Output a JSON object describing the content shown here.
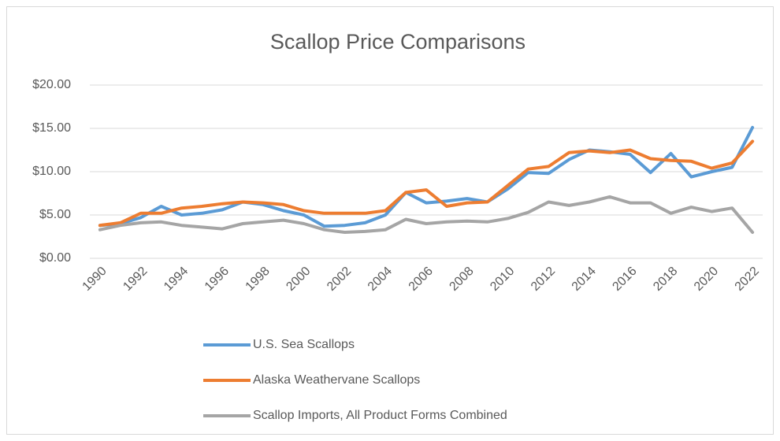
{
  "chart_data": {
    "type": "line",
    "title": "Scallop Price Comparisons",
    "categories": [
      "1990",
      null,
      "1992",
      null,
      "1994",
      null,
      "1996",
      null,
      "1998",
      null,
      "2000",
      null,
      "2002",
      null,
      "2004",
      null,
      "2006",
      null,
      "2008",
      null,
      "2010",
      null,
      "2012",
      null,
      "2014",
      null,
      "2016",
      null,
      "2018",
      null,
      "2020",
      null,
      "2022"
    ],
    "series": [
      {
        "name": "U.S. Sea Scallops",
        "color": "#5b9bd5",
        "values": [
          3.8,
          4.0,
          4.7,
          6.0,
          5.0,
          5.2,
          5.6,
          6.5,
          6.2,
          5.5,
          5.0,
          3.7,
          3.8,
          4.1,
          5.0,
          7.6,
          6.4,
          6.6,
          6.9,
          6.5,
          8.0,
          9.9,
          9.8,
          11.4,
          12.5,
          12.3,
          12.0,
          9.9,
          12.1,
          9.4,
          10.0,
          10.5,
          15.1
        ]
      },
      {
        "name": "Alaska Weathervane Scallops",
        "color": "#ed7d31",
        "values": [
          3.8,
          4.1,
          5.2,
          5.2,
          5.8,
          6.0,
          6.3,
          6.5,
          6.4,
          6.2,
          5.5,
          5.2,
          5.2,
          5.2,
          5.5,
          7.6,
          7.9,
          6.0,
          6.4,
          6.5,
          8.4,
          10.3,
          10.6,
          12.2,
          12.4,
          12.2,
          12.5,
          11.5,
          11.3,
          11.2,
          10.4,
          11.0,
          13.5
        ]
      },
      {
        "name": "Scallop Imports, All Product Forms Combined",
        "color": "#a5a5a5",
        "values": [
          3.3,
          3.8,
          4.1,
          4.2,
          3.8,
          3.6,
          3.4,
          4.0,
          4.2,
          4.4,
          4.0,
          3.3,
          3.0,
          3.1,
          3.3,
          4.5,
          4.0,
          4.2,
          4.3,
          4.2,
          4.6,
          5.3,
          6.5,
          6.1,
          6.5,
          7.1,
          6.4,
          6.4,
          5.2,
          5.9,
          5.4,
          5.8,
          3.0
        ]
      }
    ],
    "ylim": [
      0,
      20
    ],
    "yticks": [
      {
        "value": 0,
        "label": "$0.00"
      },
      {
        "value": 5,
        "label": "$5.00"
      },
      {
        "value": 10,
        "label": "$10.00"
      },
      {
        "value": 15,
        "label": "$15.00"
      },
      {
        "value": 20,
        "label": "$20.00"
      }
    ],
    "grid": true,
    "legend": "bottom"
  }
}
